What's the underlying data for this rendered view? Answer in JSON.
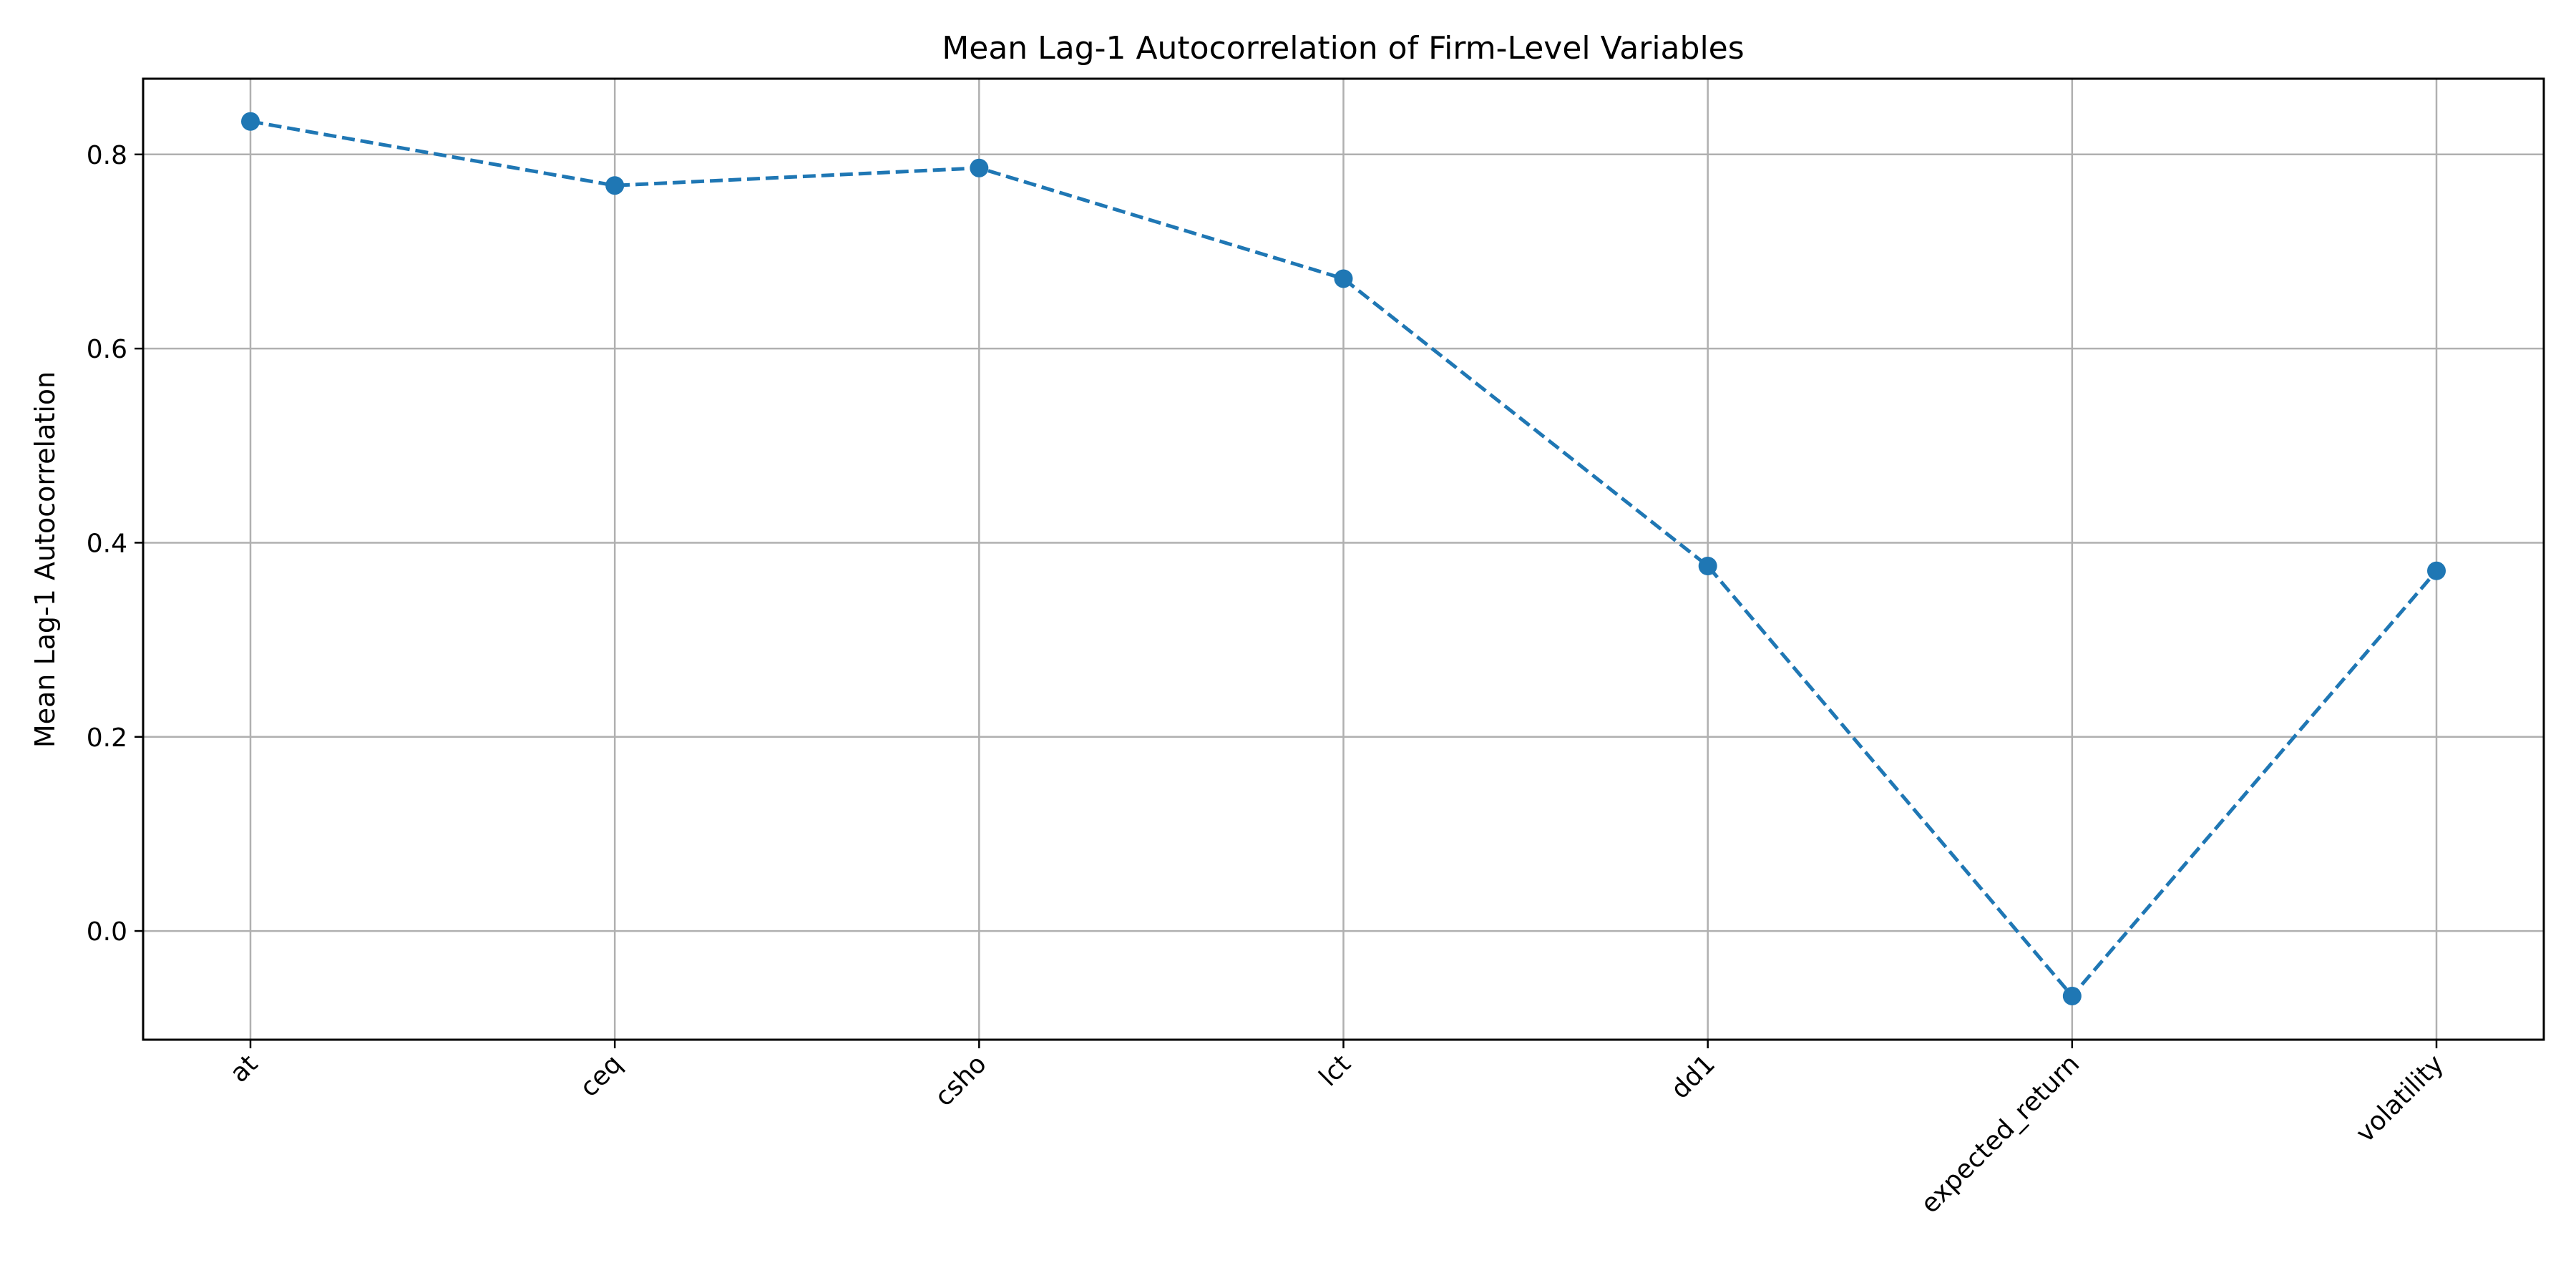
{
  "chart_data": {
    "type": "line",
    "title": "Mean Lag-1 Autocorrelation of Firm-Level Variables",
    "xlabel": "",
    "ylabel": "Mean Lag-1 Autocorrelation",
    "categories": [
      "at",
      "ceq",
      "csho",
      "lct",
      "dd1",
      "expected_return",
      "volatility"
    ],
    "series": [
      {
        "values": [
          0.834,
          0.768,
          0.786,
          0.672,
          0.376,
          -0.067,
          0.371
        ],
        "color": "#1f77b4",
        "line_style": "dashed",
        "marker": "circle"
      }
    ],
    "yticks": [
      0.0,
      0.2,
      0.4,
      0.6,
      0.8
    ],
    "ytick_labels": [
      "0.0",
      "0.2",
      "0.4",
      "0.6",
      "0.8"
    ],
    "ylim": [
      -0.112,
      0.878
    ],
    "grid": true,
    "legend": false
  }
}
